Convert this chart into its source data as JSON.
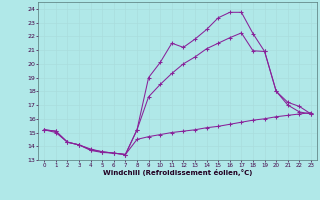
{
  "xlabel": "Windchill (Refroidissement éolien,°C)",
  "bg_color": "#b0e8e8",
  "line_color": "#882299",
  "grid_color": "#aadddd",
  "xlim": [
    -0.5,
    23.5
  ],
  "ylim": [
    13,
    24.5
  ],
  "yticks": [
    13,
    14,
    15,
    16,
    17,
    18,
    19,
    20,
    21,
    22,
    23,
    24
  ],
  "xticks": [
    0,
    1,
    2,
    3,
    4,
    5,
    6,
    7,
    8,
    9,
    10,
    11,
    12,
    13,
    14,
    15,
    16,
    17,
    18,
    19,
    20,
    21,
    22,
    23
  ],
  "line1_x": [
    0,
    1,
    2,
    3,
    4,
    5,
    6,
    7,
    8,
    9,
    10,
    11,
    12,
    13,
    14,
    15,
    16,
    17,
    18,
    19,
    20,
    21,
    22,
    23
  ],
  "line1_y": [
    15.2,
    15.1,
    14.3,
    14.1,
    13.7,
    13.55,
    13.5,
    13.4,
    15.2,
    19.0,
    20.1,
    21.5,
    21.2,
    21.8,
    22.5,
    23.35,
    23.75,
    23.75,
    22.2,
    20.9,
    18.0,
    17.0,
    16.5,
    16.35
  ],
  "line2_x": [
    0,
    1,
    2,
    3,
    4,
    5,
    6,
    7,
    8,
    9,
    10,
    11,
    12,
    13,
    14,
    15,
    16,
    17,
    18,
    19,
    20,
    21,
    22,
    23
  ],
  "line2_y": [
    15.2,
    15.1,
    14.3,
    14.1,
    13.8,
    13.6,
    13.5,
    13.4,
    15.2,
    17.6,
    18.5,
    19.3,
    20.0,
    20.5,
    21.1,
    21.5,
    21.9,
    22.25,
    20.95,
    20.9,
    18.0,
    17.2,
    16.9,
    16.35
  ],
  "line3_x": [
    0,
    1,
    2,
    3,
    4,
    5,
    6,
    7,
    8,
    9,
    10,
    11,
    12,
    13,
    14,
    15,
    16,
    17,
    18,
    19,
    20,
    21,
    22,
    23
  ],
  "line3_y": [
    15.2,
    15.0,
    14.3,
    14.1,
    13.75,
    13.6,
    13.5,
    13.4,
    14.5,
    14.7,
    14.85,
    15.0,
    15.1,
    15.2,
    15.35,
    15.45,
    15.6,
    15.75,
    15.9,
    16.0,
    16.15,
    16.25,
    16.35,
    16.45
  ]
}
